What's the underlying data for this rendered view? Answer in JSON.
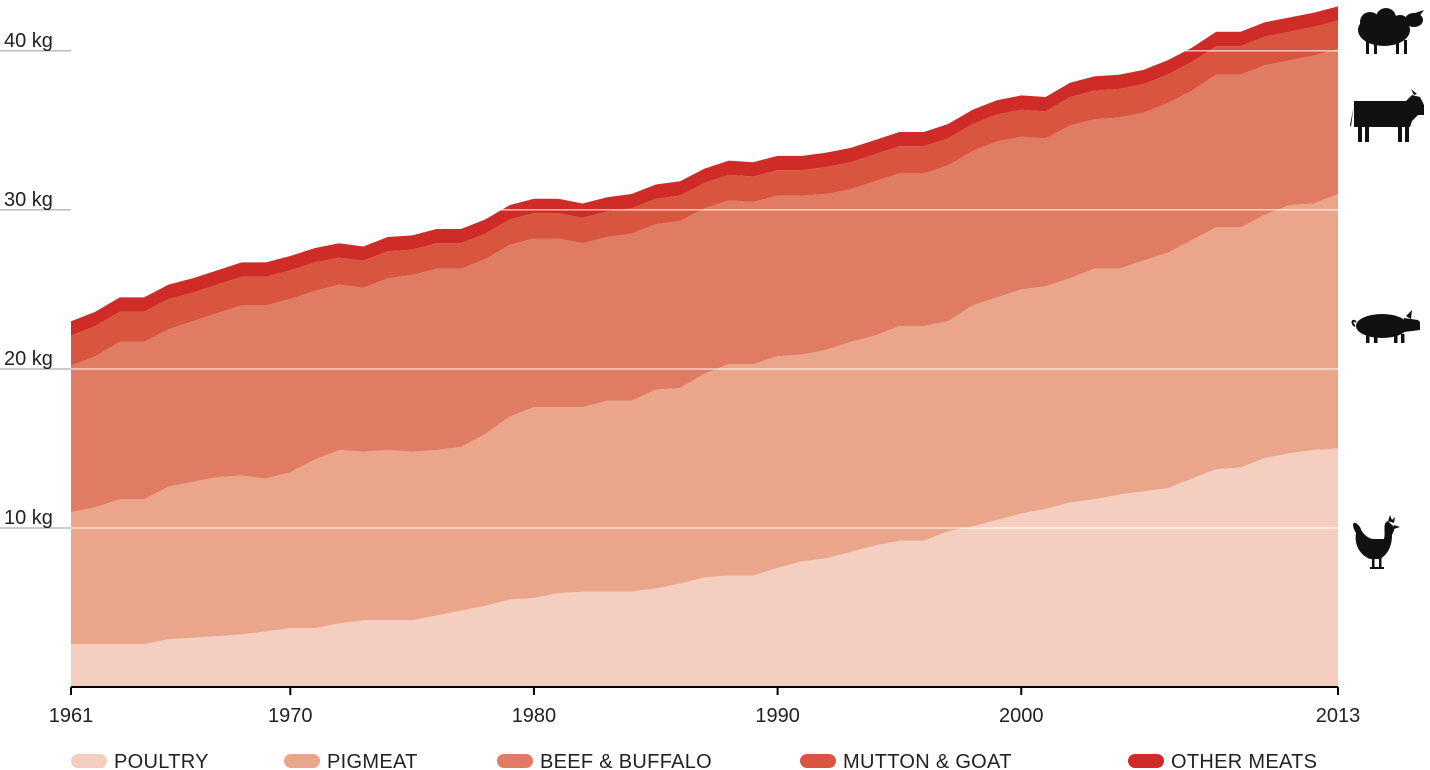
{
  "chart_data": {
    "type": "area",
    "stacked": true,
    "x_ticks": [
      1961,
      1970,
      1980,
      1990,
      2000,
      2013
    ],
    "x_tick_labels": [
      "1961",
      "1970",
      "1980",
      "1990",
      "2000",
      "2013"
    ],
    "y_ticks": [
      10,
      20,
      30,
      40
    ],
    "y_tick_labels": [
      "10 kg",
      "20 kg",
      "30 kg",
      "40 kg"
    ],
    "xlim": [
      1961,
      2013
    ],
    "ylim": [
      0,
      43.2
    ],
    "grid": "horizontal",
    "legend_position": "bottom",
    "x": [
      1961,
      1962,
      1963,
      1964,
      1965,
      1966,
      1967,
      1968,
      1969,
      1970,
      1971,
      1972,
      1973,
      1974,
      1975,
      1976,
      1977,
      1978,
      1979,
      1980,
      1981,
      1982,
      1983,
      1984,
      1985,
      1986,
      1987,
      1988,
      1989,
      1990,
      1991,
      1992,
      1993,
      1994,
      1995,
      1996,
      1997,
      1998,
      1999,
      2000,
      2001,
      2002,
      2003,
      2004,
      2005,
      2006,
      2007,
      2008,
      2009,
      2010,
      2011,
      2012,
      2013
    ],
    "series": [
      {
        "name": "POULTRY",
        "color": "#f4cfc0",
        "values": [
          2.7,
          2.7,
          2.7,
          2.7,
          3.0,
          3.1,
          3.2,
          3.3,
          3.5,
          3.7,
          3.7,
          4.0,
          4.2,
          4.2,
          4.2,
          4.5,
          4.8,
          5.1,
          5.5,
          5.6,
          5.9,
          6.0,
          6.0,
          6.0,
          6.2,
          6.5,
          6.9,
          7.0,
          7.0,
          7.5,
          7.9,
          8.1,
          8.5,
          8.9,
          9.2,
          9.2,
          9.8,
          10.1,
          10.5,
          10.9,
          11.2,
          11.6,
          11.8,
          12.1,
          12.3,
          12.5,
          13.1,
          13.7,
          13.8,
          14.4,
          14.7,
          14.9,
          15.0
        ]
      },
      {
        "name": "PIGMEAT",
        "color": "#eba58b",
        "values": [
          8.3,
          8.6,
          9.1,
          9.1,
          9.6,
          9.8,
          10.0,
          10.0,
          9.6,
          9.8,
          10.6,
          10.9,
          10.6,
          10.7,
          10.6,
          10.4,
          10.3,
          10.8,
          11.5,
          12.0,
          11.7,
          11.6,
          12.0,
          12.0,
          12.5,
          12.3,
          12.8,
          13.3,
          13.3,
          13.3,
          13.0,
          13.1,
          13.2,
          13.2,
          13.5,
          13.5,
          13.2,
          13.9,
          14.0,
          14.1,
          14.0,
          14.1,
          14.5,
          14.2,
          14.5,
          14.8,
          15.0,
          15.2,
          15.1,
          15.3,
          15.6,
          15.5,
          16.0
        ]
      },
      {
        "name": "BEEF & BUFFALO",
        "color": "#e07c63",
        "values": [
          9.2,
          9.5,
          9.9,
          9.9,
          9.9,
          10.1,
          10.3,
          10.7,
          10.9,
          10.9,
          10.6,
          10.4,
          10.3,
          10.8,
          11.1,
          11.4,
          11.2,
          11.0,
          10.8,
          10.6,
          10.6,
          10.3,
          10.3,
          10.5,
          10.4,
          10.5,
          10.4,
          10.3,
          10.2,
          10.1,
          10.0,
          9.8,
          9.6,
          9.7,
          9.6,
          9.6,
          9.8,
          9.7,
          9.8,
          9.6,
          9.3,
          9.6,
          9.4,
          9.5,
          9.3,
          9.4,
          9.4,
          9.6,
          9.6,
          9.4,
          9.1,
          9.3,
          9.1
        ]
      },
      {
        "name": "MUTTON & GOAT",
        "color": "#d8553f",
        "values": [
          1.9,
          1.9,
          1.9,
          1.9,
          1.9,
          1.8,
          1.8,
          1.8,
          1.8,
          1.8,
          1.8,
          1.7,
          1.7,
          1.7,
          1.6,
          1.6,
          1.6,
          1.6,
          1.6,
          1.6,
          1.6,
          1.6,
          1.6,
          1.6,
          1.6,
          1.6,
          1.6,
          1.6,
          1.6,
          1.6,
          1.6,
          1.7,
          1.7,
          1.7,
          1.7,
          1.7,
          1.7,
          1.7,
          1.7,
          1.7,
          1.7,
          1.8,
          1.8,
          1.8,
          1.8,
          1.8,
          1.8,
          1.8,
          1.8,
          1.8,
          1.8,
          1.8,
          1.8
        ]
      },
      {
        "name": "OTHER MEATS",
        "color": "#cf2b27",
        "values": [
          0.9,
          0.9,
          0.9,
          0.9,
          0.9,
          0.9,
          0.9,
          0.9,
          0.9,
          0.9,
          0.9,
          0.9,
          0.9,
          0.9,
          0.9,
          0.9,
          0.9,
          0.9,
          0.9,
          0.9,
          0.9,
          0.9,
          0.9,
          0.9,
          0.9,
          0.9,
          0.9,
          0.9,
          0.9,
          0.9,
          0.9,
          0.9,
          0.9,
          0.9,
          0.9,
          0.9,
          0.9,
          0.9,
          0.9,
          0.9,
          0.9,
          0.9,
          0.9,
          0.9,
          0.9,
          0.9,
          0.9,
          0.9,
          0.9,
          0.9,
          0.9,
          0.9,
          0.9
        ]
      }
    ],
    "icons": [
      {
        "name": "sheep-icon",
        "series": "MUTTON & GOAT"
      },
      {
        "name": "cow-icon",
        "series": "BEEF & BUFFALO"
      },
      {
        "name": "pig-icon",
        "series": "PIGMEAT"
      },
      {
        "name": "chicken-icon",
        "series": "POULTRY"
      }
    ],
    "icon_color": "#111111",
    "grid_color": "#999999",
    "axis_color": "#000000"
  }
}
